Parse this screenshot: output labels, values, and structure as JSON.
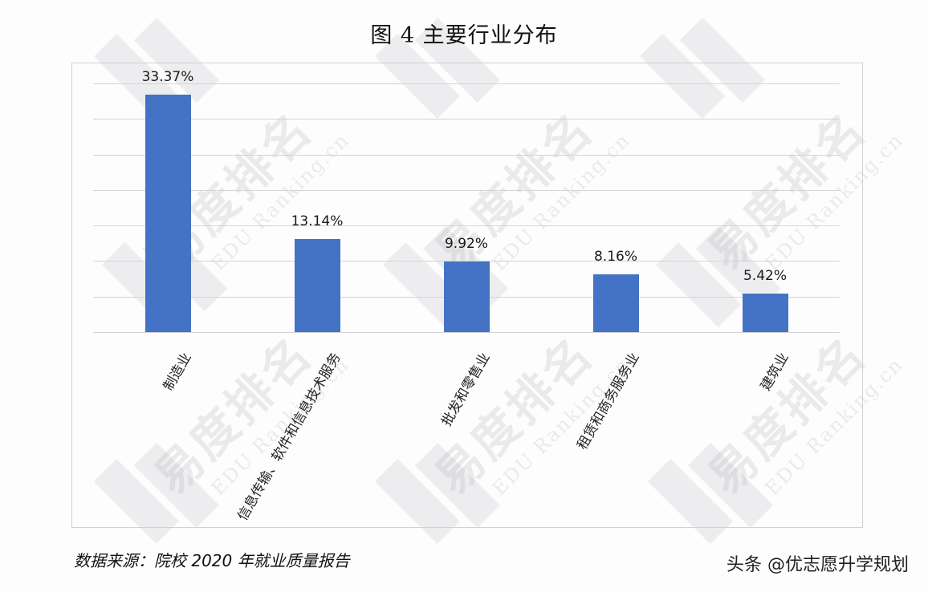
{
  "title": "图 4  主要行业分布",
  "footer": {
    "source": "数据来源：院校 2020 年就业质量报告",
    "credit": "头条 @优志愿升学规划"
  },
  "watermark": {
    "cn": "易度排名",
    "en": "EDU Ranking.cn"
  },
  "colors": {
    "bar": "#4472c4",
    "grid": "#d4d4d8",
    "frame": "#d0d0d4"
  },
  "chart_data": {
    "type": "bar",
    "title": "图 4  主要行业分布",
    "categories": [
      "制造业",
      "信息传输、软件和信息技术服务",
      "批发和零售业",
      "租赁和商务服务业",
      "建筑业"
    ],
    "values": [
      33.37,
      13.14,
      9.92,
      8.16,
      5.42
    ],
    "value_labels": [
      "33.37%",
      "13.14%",
      "9.92%",
      "8.16%",
      "5.42%"
    ],
    "unit": "%",
    "xlabel": "",
    "ylabel": "",
    "ylim": [
      0,
      35
    ],
    "y_gridlines": [
      0,
      5,
      10,
      15,
      20,
      25,
      30,
      35
    ],
    "y_axis_visible": false,
    "grid": true,
    "legend": "none",
    "label_rotation": -60
  }
}
